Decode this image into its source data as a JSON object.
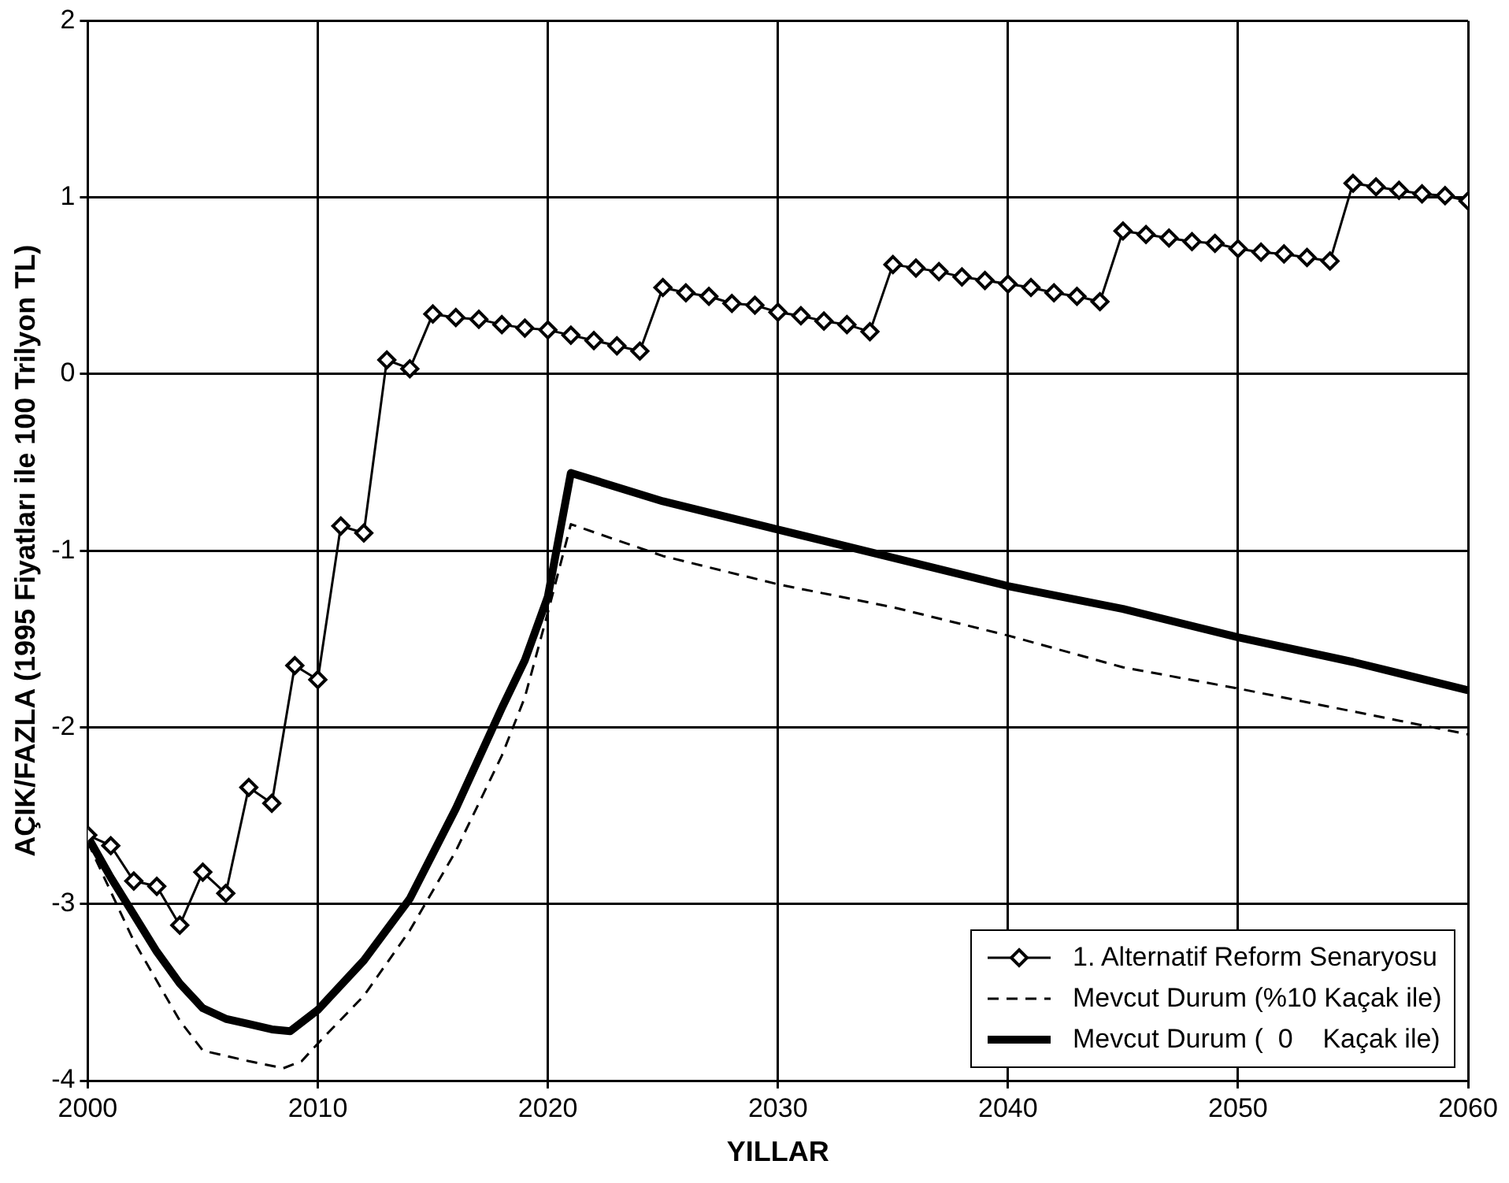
{
  "chart_data": {
    "type": "line",
    "xlabel": "YILLAR",
    "ylabel": "AÇIK/FAZLA (1995 Fiyatları ile 100 Trilyon TL)",
    "xlim": [
      2000,
      2060
    ],
    "xticks": [
      2000,
      2010,
      2020,
      2030,
      2040,
      2050,
      2060
    ],
    "ylim": [
      -4,
      2
    ],
    "yticks": [
      -4,
      -3,
      -2,
      -1,
      0,
      1,
      2
    ],
    "grid": true,
    "legend": "bottom right",
    "series": [
      {
        "name": "1. Alternatif Reform Senaryosu",
        "color": "#000000",
        "marker": "diamond",
        "line_style": "solid",
        "x": [
          2000,
          2001,
          2002,
          2003,
          2004,
          2005,
          2006,
          2007,
          2008,
          2009,
          2010,
          2011,
          2012,
          2013,
          2014,
          2015,
          2016,
          2017,
          2018,
          2019,
          2020,
          2021,
          2022,
          2023,
          2024,
          2025,
          2026,
          2027,
          2028,
          2029,
          2030,
          2031,
          2032,
          2033,
          2034,
          2035,
          2036,
          2037,
          2038,
          2039,
          2040,
          2041,
          2042,
          2043,
          2044,
          2045,
          2046,
          2047,
          2048,
          2049,
          2050,
          2051,
          2052,
          2053,
          2054,
          2055,
          2056,
          2057,
          2058,
          2059,
          2060
        ],
        "values": [
          -2.61,
          -2.67,
          -2.87,
          -2.9,
          -3.12,
          -2.82,
          -2.94,
          -2.34,
          -2.43,
          -1.65,
          -1.73,
          -0.86,
          -0.9,
          0.08,
          0.03,
          0.34,
          0.32,
          0.31,
          0.28,
          0.26,
          0.25,
          0.22,
          0.19,
          0.16,
          0.13,
          0.49,
          0.46,
          0.44,
          0.4,
          0.39,
          0.35,
          0.33,
          0.3,
          0.28,
          0.24,
          0.62,
          0.6,
          0.58,
          0.55,
          0.53,
          0.51,
          0.49,
          0.46,
          0.44,
          0.41,
          0.81,
          0.79,
          0.77,
          0.75,
          0.74,
          0.71,
          0.69,
          0.68,
          0.66,
          0.64,
          1.08,
          1.06,
          1.04,
          1.02,
          1.01,
          0.98
        ]
      },
      {
        "name": "Mevcut Durum (%10 Kaçak ile)",
        "color": "#000000",
        "marker": "none",
        "line_style": "dashed",
        "x": [
          2000,
          2002,
          2004,
          2005,
          2007,
          2008.5,
          2009.3,
          2010,
          2012,
          2014,
          2016,
          2018,
          2019,
          2020,
          2021,
          2025,
          2030,
          2035,
          2040,
          2045,
          2050,
          2055,
          2060
        ],
        "values": [
          -2.65,
          -3.21,
          -3.66,
          -3.83,
          -3.89,
          -3.93,
          -3.89,
          -3.79,
          -3.52,
          -3.15,
          -2.7,
          -2.16,
          -1.83,
          -1.35,
          -0.85,
          -1.03,
          -1.19,
          -1.32,
          -1.48,
          -1.66,
          -1.78,
          -1.91,
          -2.04
        ]
      },
      {
        "name": "Mevcut Durum (  0    Kaçak ile)",
        "color": "#000000",
        "marker": "none",
        "line_style": "solid",
        "x": [
          2000,
          2001,
          2002,
          2003,
          2004,
          2005,
          2006,
          2007,
          2008,
          2008.8,
          2010,
          2012,
          2014,
          2016,
          2018,
          2019,
          2020,
          2021,
          2025,
          2030,
          2035,
          2040,
          2045,
          2050,
          2055,
          2060
        ],
        "values": [
          -2.62,
          -2.85,
          -3.06,
          -3.27,
          -3.45,
          -3.59,
          -3.65,
          -3.68,
          -3.71,
          -3.72,
          -3.6,
          -3.32,
          -2.97,
          -2.46,
          -1.89,
          -1.62,
          -1.26,
          -0.56,
          -0.72,
          -0.88,
          -1.04,
          -1.2,
          -1.33,
          -1.49,
          -1.63,
          -1.79
        ]
      }
    ]
  }
}
